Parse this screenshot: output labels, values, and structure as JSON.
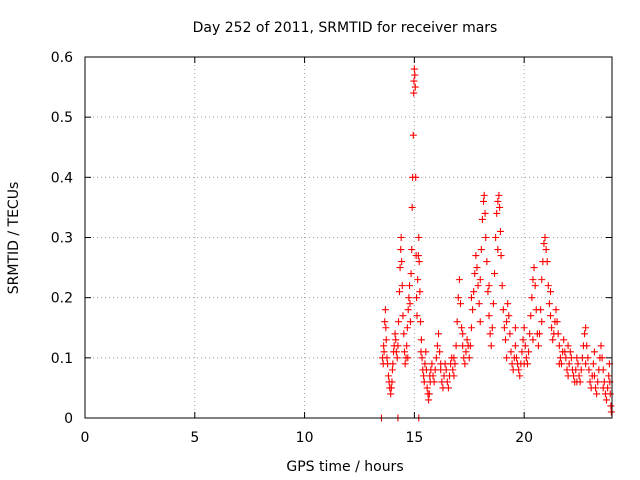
{
  "chart_data": {
    "type": "scatter",
    "title": "Day 252 of 2011, SRMTID for receiver mars",
    "xlabel": "GPS time / hours",
    "ylabel": "SRMTID / TECUs",
    "xlim": [
      0,
      24
    ],
    "ylim": [
      0,
      0.6
    ],
    "xticks": [
      0,
      5,
      10,
      15,
      20
    ],
    "yticks": [
      0,
      0.1,
      0.2,
      0.3,
      0.4,
      0.5,
      0.6
    ],
    "xtick_labels": [
      "0",
      "5",
      "10",
      "15",
      "20"
    ],
    "ytick_labels": [
      "0",
      "0.1",
      "0.2",
      "0.3",
      "0.4",
      "0.5",
      "0.6"
    ],
    "grid": true,
    "marker": "+",
    "series": [
      {
        "name": "SRMTID",
        "color": "#ff0000",
        "points": [
          [
            13.55,
            0.1
          ],
          [
            13.58,
            0.09
          ],
          [
            13.62,
            0.11
          ],
          [
            13.65,
            0.16
          ],
          [
            13.68,
            0.18
          ],
          [
            13.7,
            0.15
          ],
          [
            13.72,
            0.13
          ],
          [
            13.75,
            0.1
          ],
          [
            13.78,
            0.09
          ],
          [
            13.82,
            0.07
          ],
          [
            13.85,
            0.06
          ],
          [
            13.88,
            0.05
          ],
          [
            13.92,
            0.04
          ],
          [
            13.95,
            0.05
          ],
          [
            13.98,
            0.06
          ],
          [
            14.02,
            0.09
          ],
          [
            14.05,
            0.11
          ],
          [
            14.08,
            0.12
          ],
          [
            14.12,
            0.14
          ],
          [
            14.15,
            0.13
          ],
          [
            14.18,
            0.11
          ],
          [
            14.22,
            0.1
          ],
          [
            14.25,
            0.12
          ],
          [
            14.28,
            0.16
          ],
          [
            14.32,
            0.21
          ],
          [
            14.35,
            0.25
          ],
          [
            14.38,
            0.28
          ],
          [
            14.4,
            0.3
          ],
          [
            14.42,
            0.26
          ],
          [
            14.45,
            0.22
          ],
          [
            14.48,
            0.17
          ],
          [
            14.52,
            0.14
          ],
          [
            14.55,
            0.11
          ],
          [
            14.58,
            0.09
          ],
          [
            14.62,
            0.1
          ],
          [
            14.65,
            0.12
          ],
          [
            14.68,
            0.15
          ],
          [
            14.72,
            0.18
          ],
          [
            14.75,
            0.2
          ],
          [
            14.78,
            0.22
          ],
          [
            14.8,
            0.19
          ],
          [
            14.82,
            0.16
          ],
          [
            14.85,
            0.24
          ],
          [
            14.88,
            0.28
          ],
          [
            14.9,
            0.35
          ],
          [
            14.92,
            0.4
          ],
          [
            14.95,
            0.47
          ],
          [
            14.97,
            0.54
          ],
          [
            14.98,
            0.56
          ],
          [
            15.0,
            0.58
          ],
          [
            15.02,
            0.57
          ],
          [
            15.04,
            0.55
          ],
          [
            15.06,
            0.4
          ],
          [
            15.08,
            0.27
          ],
          [
            15.1,
            0.2
          ],
          [
            15.12,
            0.17
          ],
          [
            15.15,
            0.23
          ],
          [
            15.18,
            0.27
          ],
          [
            15.2,
            0.3
          ],
          [
            15.22,
            0.26
          ],
          [
            15.25,
            0.21
          ],
          [
            15.28,
            0.16
          ],
          [
            15.32,
            0.13
          ],
          [
            15.35,
            0.1
          ],
          [
            15.38,
            0.08
          ],
          [
            15.42,
            0.07
          ],
          [
            15.45,
            0.06
          ],
          [
            15.48,
            0.09
          ],
          [
            15.52,
            0.11
          ],
          [
            15.55,
            0.08
          ],
          [
            15.58,
            0.05
          ],
          [
            15.62,
            0.04
          ],
          [
            15.65,
            0.03
          ],
          [
            15.68,
            0.04
          ],
          [
            15.72,
            0.06
          ],
          [
            15.75,
            0.08
          ],
          [
            15.8,
            0.09
          ],
          [
            15.85,
            0.07
          ],
          [
            15.9,
            0.06
          ],
          [
            15.95,
            0.08
          ],
          [
            16.0,
            0.1
          ],
          [
            16.05,
            0.12
          ],
          [
            16.1,
            0.14
          ],
          [
            16.15,
            0.11
          ],
          [
            16.2,
            0.08
          ],
          [
            16.25,
            0.06
          ],
          [
            16.3,
            0.05
          ],
          [
            16.35,
            0.07
          ],
          [
            16.4,
            0.09
          ],
          [
            16.45,
            0.08
          ],
          [
            16.5,
            0.06
          ],
          [
            16.55,
            0.05
          ],
          [
            16.6,
            0.07
          ],
          [
            16.65,
            0.09
          ],
          [
            16.7,
            0.1
          ],
          [
            16.75,
            0.08
          ],
          [
            16.8,
            0.07
          ],
          [
            16.85,
            0.09
          ],
          [
            16.9,
            0.12
          ],
          [
            16.95,
            0.16
          ],
          [
            17.0,
            0.2
          ],
          [
            17.05,
            0.23
          ],
          [
            17.1,
            0.19
          ],
          [
            17.15,
            0.15
          ],
          [
            17.2,
            0.12
          ],
          [
            17.25,
            0.1
          ],
          [
            17.3,
            0.09
          ],
          [
            17.35,
            0.11
          ],
          [
            17.4,
            0.13
          ],
          [
            17.45,
            0.12
          ],
          [
            17.5,
            0.1
          ],
          [
            17.55,
            0.12
          ],
          [
            17.6,
            0.15
          ],
          [
            17.65,
            0.18
          ],
          [
            17.7,
            0.21
          ],
          [
            17.75,
            0.24
          ],
          [
            17.8,
            0.27
          ],
          [
            17.85,
            0.25
          ],
          [
            17.9,
            0.22
          ],
          [
            17.95,
            0.19
          ],
          [
            18.0,
            0.23
          ],
          [
            18.05,
            0.28
          ],
          [
            18.1,
            0.33
          ],
          [
            18.15,
            0.36
          ],
          [
            18.18,
            0.37
          ],
          [
            18.22,
            0.34
          ],
          [
            18.25,
            0.3
          ],
          [
            18.3,
            0.26
          ],
          [
            18.35,
            0.21
          ],
          [
            18.4,
            0.17
          ],
          [
            18.45,
            0.14
          ],
          [
            18.5,
            0.12
          ],
          [
            18.55,
            0.15
          ],
          [
            18.6,
            0.19
          ],
          [
            18.65,
            0.24
          ],
          [
            18.7,
            0.3
          ],
          [
            18.75,
            0.34
          ],
          [
            18.8,
            0.36
          ],
          [
            18.85,
            0.37
          ],
          [
            18.88,
            0.35
          ],
          [
            18.92,
            0.31
          ],
          [
            18.95,
            0.27
          ],
          [
            19.0,
            0.22
          ],
          [
            19.05,
            0.18
          ],
          [
            19.1,
            0.15
          ],
          [
            19.15,
            0.13
          ],
          [
            19.2,
            0.16
          ],
          [
            19.25,
            0.19
          ],
          [
            19.3,
            0.17
          ],
          [
            19.35,
            0.14
          ],
          [
            19.4,
            0.11
          ],
          [
            19.45,
            0.09
          ],
          [
            19.5,
            0.08
          ],
          [
            19.55,
            0.1
          ],
          [
            19.6,
            0.12
          ],
          [
            19.65,
            0.1
          ],
          [
            19.7,
            0.09
          ],
          [
            19.75,
            0.08
          ],
          [
            19.8,
            0.07
          ],
          [
            19.85,
            0.09
          ],
          [
            19.9,
            0.11
          ],
          [
            19.95,
            0.13
          ],
          [
            20.0,
            0.15
          ],
          [
            20.05,
            0.12
          ],
          [
            20.1,
            0.1
          ],
          [
            20.15,
            0.09
          ],
          [
            20.2,
            0.11
          ],
          [
            20.25,
            0.14
          ],
          [
            20.3,
            0.17
          ],
          [
            20.35,
            0.2
          ],
          [
            20.4,
            0.23
          ],
          [
            20.45,
            0.25
          ],
          [
            20.5,
            0.22
          ],
          [
            20.55,
            0.18
          ],
          [
            20.6,
            0.14
          ],
          [
            20.65,
            0.12
          ],
          [
            20.7,
            0.14
          ],
          [
            20.75,
            0.18
          ],
          [
            20.8,
            0.23
          ],
          [
            20.85,
            0.26
          ],
          [
            20.9,
            0.29
          ],
          [
            20.95,
            0.3
          ],
          [
            21.0,
            0.28
          ],
          [
            21.05,
            0.26
          ],
          [
            21.1,
            0.22
          ],
          [
            21.15,
            0.19
          ],
          [
            21.2,
            0.17
          ],
          [
            21.25,
            0.15
          ],
          [
            21.3,
            0.13
          ],
          [
            21.35,
            0.14
          ],
          [
            21.4,
            0.16
          ],
          [
            21.45,
            0.18
          ],
          [
            21.5,
            0.16
          ],
          [
            21.55,
            0.14
          ],
          [
            21.6,
            0.12
          ],
          [
            21.65,
            0.1
          ],
          [
            21.7,
            0.09
          ],
          [
            21.75,
            0.11
          ],
          [
            21.8,
            0.13
          ],
          [
            21.85,
            0.11
          ],
          [
            21.9,
            0.1
          ],
          [
            21.95,
            0.08
          ],
          [
            22.0,
            0.07
          ],
          [
            22.05,
            0.09
          ],
          [
            22.1,
            0.11
          ],
          [
            22.15,
            0.1
          ],
          [
            22.2,
            0.08
          ],
          [
            22.25,
            0.07
          ],
          [
            22.3,
            0.06
          ],
          [
            22.35,
            0.08
          ],
          [
            22.4,
            0.1
          ],
          [
            22.45,
            0.09
          ],
          [
            22.5,
            0.07
          ],
          [
            22.55,
            0.06
          ],
          [
            22.6,
            0.08
          ],
          [
            22.65,
            0.1
          ],
          [
            22.7,
            0.12
          ],
          [
            22.75,
            0.14
          ],
          [
            22.8,
            0.15
          ],
          [
            22.85,
            0.12
          ],
          [
            22.9,
            0.1
          ],
          [
            22.95,
            0.08
          ],
          [
            23.0,
            0.06
          ],
          [
            23.05,
            0.05
          ],
          [
            23.1,
            0.07
          ],
          [
            23.15,
            0.09
          ],
          [
            23.2,
            0.07
          ],
          [
            23.25,
            0.05
          ],
          [
            23.3,
            0.04
          ],
          [
            23.35,
            0.06
          ],
          [
            23.4,
            0.08
          ],
          [
            23.45,
            0.1
          ],
          [
            23.5,
            0.12
          ],
          [
            23.55,
            0.1
          ],
          [
            23.6,
            0.08
          ],
          [
            23.65,
            0.06
          ],
          [
            23.7,
            0.04
          ],
          [
            23.75,
            0.03
          ],
          [
            23.8,
            0.05
          ],
          [
            23.85,
            0.07
          ],
          [
            23.88,
            0.09
          ],
          [
            23.9,
            0.06
          ],
          [
            23.92,
            0.04
          ],
          [
            23.95,
            0.02
          ],
          [
            23.97,
            0.01
          ],
          [
            13.5,
            0.0
          ],
          [
            14.25,
            0.0
          ],
          [
            15.2,
            0.0
          ],
          [
            13.6,
            0.12
          ],
          [
            14.0,
            0.08
          ],
          [
            14.7,
            0.1
          ],
          [
            15.3,
            0.11
          ],
          [
            15.7,
            0.07
          ],
          [
            16.2,
            0.09
          ],
          [
            16.8,
            0.1
          ],
          [
            17.2,
            0.14
          ],
          [
            17.6,
            0.2
          ],
          [
            18.0,
            0.16
          ],
          [
            18.4,
            0.22
          ],
          [
            18.8,
            0.28
          ],
          [
            19.2,
            0.1
          ],
          [
            19.6,
            0.15
          ],
          [
            20.0,
            0.09
          ],
          [
            20.4,
            0.13
          ],
          [
            20.8,
            0.16
          ],
          [
            21.2,
            0.21
          ],
          [
            21.6,
            0.09
          ],
          [
            22.0,
            0.12
          ],
          [
            22.4,
            0.06
          ],
          [
            22.8,
            0.09
          ],
          [
            23.2,
            0.11
          ],
          [
            23.6,
            0.05
          ]
        ]
      }
    ]
  }
}
